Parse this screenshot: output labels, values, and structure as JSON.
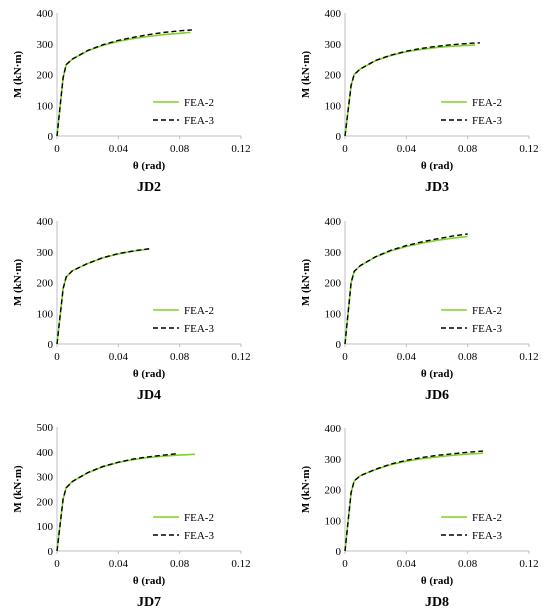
{
  "figure": {
    "colors": {
      "fea2": "#7ed321",
      "fea3": "#000000",
      "axis": "#bfbfbf"
    },
    "panels": [
      {
        "title": "JD2",
        "xlabel": "θ (rad)",
        "ylabel": "M (kN·m)",
        "xticks": [
          "0",
          "0.04",
          "0.08",
          "0.12"
        ],
        "yticks": [
          "0",
          "100",
          "200",
          "300",
          "400"
        ],
        "legend": [
          "FEA-2",
          "FEA-3"
        ]
      },
      {
        "title": "JD3",
        "xlabel": "θ (rad)",
        "ylabel": "M (kN·m)",
        "xticks": [
          "0",
          "0.04",
          "0.08",
          "0.12"
        ],
        "yticks": [
          "0",
          "100",
          "200",
          "300",
          "400"
        ],
        "legend": [
          "FEA-2",
          "FEA-3"
        ]
      },
      {
        "title": "JD4",
        "xlabel": "θ (rad)",
        "ylabel": "M (kN·m)",
        "xticks": [
          "0",
          "0.04",
          "0.08",
          "0.12"
        ],
        "yticks": [
          "0",
          "100",
          "200",
          "300",
          "400"
        ],
        "legend": [
          "FEA-2",
          "FEA-3"
        ]
      },
      {
        "title": "JD6",
        "xlabel": "θ (rad)",
        "ylabel": "M (kN·m)",
        "xticks": [
          "0",
          "0.04",
          "0.08",
          "0.12"
        ],
        "yticks": [
          "0",
          "100",
          "200",
          "300",
          "400"
        ],
        "legend": [
          "FEA-2",
          "FEA-3"
        ]
      },
      {
        "title": "JD7",
        "xlabel": "θ (rad)",
        "ylabel": "M (kN·m)",
        "xticks": [
          "0",
          "0.04",
          "0.08",
          "0.12"
        ],
        "yticks": [
          "0",
          "100",
          "200",
          "300",
          "400",
          "500"
        ],
        "legend": [
          "FEA-2",
          "FEA-3"
        ]
      },
      {
        "title": "JD8",
        "xlabel": "θ (rad)",
        "ylabel": "M (kN·m)",
        "xticks": [
          "0",
          "0.04",
          "0.08",
          "0.12"
        ],
        "yticks": [
          "0",
          "100",
          "200",
          "300",
          "400"
        ],
        "legend": [
          "FEA-2",
          "FEA-3"
        ]
      }
    ]
  },
  "chart_data": [
    {
      "type": "line",
      "title": "JD2",
      "xlabel": "θ (rad)",
      "ylabel": "M (kN·m)",
      "xlim": [
        0,
        0.12
      ],
      "ylim": [
        0,
        400
      ],
      "grid": false,
      "legend_position": "bottom-right",
      "series": [
        {
          "name": "FEA-2",
          "x": [
            0,
            0.004,
            0.006,
            0.01,
            0.02,
            0.03,
            0.04,
            0.05,
            0.06,
            0.07,
            0.08,
            0.087
          ],
          "y": [
            0,
            190,
            232,
            250,
            277,
            295,
            308,
            317,
            324,
            330,
            334,
            337
          ]
        },
        {
          "name": "FEA-3",
          "x": [
            0,
            0.004,
            0.006,
            0.01,
            0.02,
            0.03,
            0.04,
            0.05,
            0.06,
            0.07,
            0.08,
            0.088
          ],
          "y": [
            0,
            190,
            232,
            250,
            278,
            297,
            311,
            321,
            330,
            337,
            342,
            345
          ]
        }
      ]
    },
    {
      "type": "line",
      "title": "JD3",
      "xlabel": "θ (rad)",
      "ylabel": "M (kN·m)",
      "xlim": [
        0,
        0.12
      ],
      "ylim": [
        0,
        400
      ],
      "grid": false,
      "legend_position": "bottom-right",
      "series": [
        {
          "name": "FEA-2",
          "x": [
            0,
            0.004,
            0.006,
            0.01,
            0.02,
            0.03,
            0.04,
            0.05,
            0.06,
            0.07,
            0.08,
            0.085
          ],
          "y": [
            0,
            165,
            200,
            218,
            245,
            262,
            274,
            282,
            288,
            292,
            295,
            296
          ]
        },
        {
          "name": "FEA-3",
          "x": [
            0,
            0.004,
            0.006,
            0.01,
            0.02,
            0.03,
            0.04,
            0.05,
            0.06,
            0.07,
            0.08,
            0.088
          ],
          "y": [
            0,
            165,
            200,
            218,
            246,
            263,
            276,
            285,
            292,
            297,
            301,
            303
          ]
        }
      ]
    },
    {
      "type": "line",
      "title": "JD4",
      "xlabel": "θ (rad)",
      "ylabel": "M (kN·m)",
      "xlim": [
        0,
        0.12
      ],
      "ylim": [
        0,
        400
      ],
      "grid": false,
      "legend_position": "bottom-right",
      "series": [
        {
          "name": "FEA-2",
          "x": [
            0,
            0.004,
            0.006,
            0.01,
            0.02,
            0.03,
            0.04,
            0.05,
            0.06
          ],
          "y": [
            0,
            180,
            218,
            238,
            262,
            280,
            293,
            302,
            309
          ]
        },
        {
          "name": "FEA-3",
          "x": [
            0,
            0.004,
            0.006,
            0.01,
            0.02,
            0.03,
            0.04,
            0.05,
            0.062
          ],
          "y": [
            0,
            180,
            218,
            238,
            262,
            281,
            294,
            303,
            311
          ]
        }
      ]
    },
    {
      "type": "line",
      "title": "JD6",
      "xlabel": "θ (rad)",
      "ylabel": "M (kN·m)",
      "xlim": [
        0,
        0.12
      ],
      "ylim": [
        0,
        400
      ],
      "grid": false,
      "legend_position": "bottom-right",
      "series": [
        {
          "name": "FEA-2",
          "x": [
            0,
            0.004,
            0.006,
            0.01,
            0.02,
            0.03,
            0.04,
            0.05,
            0.06,
            0.07,
            0.08
          ],
          "y": [
            0,
            200,
            236,
            255,
            283,
            303,
            317,
            328,
            337,
            344,
            350
          ]
        },
        {
          "name": "FEA-3",
          "x": [
            0,
            0.004,
            0.006,
            0.01,
            0.02,
            0.03,
            0.04,
            0.05,
            0.06,
            0.07,
            0.08
          ],
          "y": [
            0,
            200,
            236,
            255,
            284,
            305,
            320,
            332,
            342,
            351,
            358
          ]
        }
      ]
    },
    {
      "type": "line",
      "title": "JD7",
      "xlabel": "θ (rad)",
      "ylabel": "M (kN·m)",
      "xlim": [
        0,
        0.12
      ],
      "ylim": [
        0,
        500
      ],
      "grid": false,
      "legend_position": "bottom-right",
      "series": [
        {
          "name": "FEA-2",
          "x": [
            0,
            0.004,
            0.006,
            0.01,
            0.02,
            0.03,
            0.04,
            0.05,
            0.06,
            0.07,
            0.08,
            0.09
          ],
          "y": [
            0,
            210,
            255,
            280,
            315,
            340,
            357,
            369,
            377,
            383,
            387,
            390
          ]
        },
        {
          "name": "FEA-3",
          "x": [
            0,
            0.004,
            0.006,
            0.01,
            0.02,
            0.03,
            0.04,
            0.05,
            0.06,
            0.07,
            0.078
          ],
          "y": [
            0,
            210,
            255,
            280,
            316,
            341,
            358,
            371,
            380,
            387,
            392
          ]
        }
      ]
    },
    {
      "type": "line",
      "title": "JD8",
      "xlabel": "θ (rad)",
      "ylabel": "M (kN·m)",
      "xlim": [
        0,
        0.12
      ],
      "ylim": [
        0,
        400
      ],
      "grid": false,
      "legend_position": "bottom-right",
      "series": [
        {
          "name": "FEA-2",
          "x": [
            0,
            0.004,
            0.006,
            0.01,
            0.02,
            0.03,
            0.04,
            0.05,
            0.06,
            0.07,
            0.08,
            0.09
          ],
          "y": [
            0,
            190,
            228,
            245,
            265,
            281,
            292,
            300,
            306,
            311,
            315,
            318
          ]
        },
        {
          "name": "FEA-3",
          "x": [
            0,
            0.004,
            0.006,
            0.01,
            0.02,
            0.03,
            0.04,
            0.05,
            0.06,
            0.07,
            0.08,
            0.09
          ],
          "y": [
            0,
            190,
            228,
            245,
            266,
            283,
            295,
            304,
            311,
            316,
            321,
            325
          ]
        }
      ]
    }
  ]
}
